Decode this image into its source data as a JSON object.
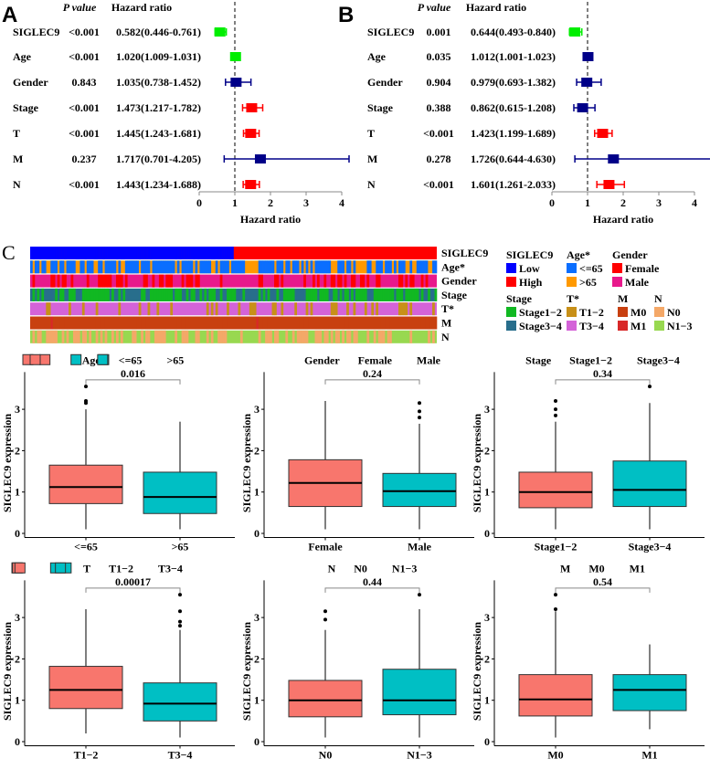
{
  "panels": {
    "A": "A",
    "B": "B",
    "C": "C"
  },
  "chart_data": [
    {
      "type": "forest",
      "panel": "A",
      "col_p": "P value",
      "col_hr": "Hazard ratio",
      "xlabel": "Hazard ratio",
      "xticks": [
        "0",
        "1",
        "2",
        "3",
        "4"
      ],
      "xlim": [
        0,
        4
      ],
      "rows": [
        {
          "name": "SIGLEC9",
          "p": "<0.001",
          "hr_text": "0.582(0.446-0.761)",
          "hr": 0.582,
          "lo": 0.446,
          "hi": 0.761,
          "color": "#00ee00"
        },
        {
          "name": "Age",
          "p": "<0.001",
          "hr_text": "1.020(1.009-1.031)",
          "hr": 1.02,
          "lo": 1.009,
          "hi": 1.031,
          "color": "#00ee00"
        },
        {
          "name": "Gender",
          "p": "0.843",
          "hr_text": "1.035(0.738-1.452)",
          "hr": 1.035,
          "lo": 0.738,
          "hi": 1.452,
          "color": "#000088"
        },
        {
          "name": "Stage",
          "p": "<0.001",
          "hr_text": "1.473(1.217-1.782)",
          "hr": 1.473,
          "lo": 1.217,
          "hi": 1.782,
          "color": "#ff0000"
        },
        {
          "name": "T",
          "p": "<0.001",
          "hr_text": "1.445(1.243-1.681)",
          "hr": 1.445,
          "lo": 1.243,
          "hi": 1.681,
          "color": "#ff0000"
        },
        {
          "name": "M",
          "p": "0.237",
          "hr_text": "1.717(0.701-4.205)",
          "hr": 1.717,
          "lo": 0.701,
          "hi": 4.205,
          "color": "#000088"
        },
        {
          "name": "N",
          "p": "<0.001",
          "hr_text": "1.443(1.234-1.688)",
          "hr": 1.443,
          "lo": 1.234,
          "hi": 1.688,
          "color": "#ff0000"
        }
      ]
    },
    {
      "type": "forest",
      "panel": "B",
      "col_p": "P value",
      "col_hr": "Hazard ratio",
      "xlabel": "Hazard ratio",
      "xticks": [
        "0",
        "1",
        "2",
        "3",
        "4"
      ],
      "xlim": [
        0,
        4
      ],
      "rows": [
        {
          "name": "SIGLEC9",
          "p": "0.001",
          "hr_text": "0.644(0.493-0.840)",
          "hr": 0.644,
          "lo": 0.493,
          "hi": 0.84,
          "color": "#00ee00"
        },
        {
          "name": "Age",
          "p": "0.035",
          "hr_text": "1.012(1.001-1.023)",
          "hr": 1.012,
          "lo": 1.001,
          "hi": 1.023,
          "color": "#000088"
        },
        {
          "name": "Gender",
          "p": "0.904",
          "hr_text": "0.979(0.693-1.382)",
          "hr": 0.979,
          "lo": 0.693,
          "hi": 1.382,
          "color": "#000088"
        },
        {
          "name": "Stage",
          "p": "0.388",
          "hr_text": "0.862(0.615-1.208)",
          "hr": 0.862,
          "lo": 0.615,
          "hi": 1.208,
          "color": "#000088"
        },
        {
          "name": "T",
          "p": "<0.001",
          "hr_text": "1.423(1.199-1.689)",
          "hr": 1.423,
          "lo": 1.199,
          "hi": 1.689,
          "color": "#ff0000"
        },
        {
          "name": "M",
          "p": "0.278",
          "hr_text": "1.726(0.644-4.630)",
          "hr": 1.726,
          "lo": 0.644,
          "hi": 4.63,
          "color": "#000088"
        },
        {
          "name": "N",
          "p": "<0.001",
          "hr_text": "1.601(1.261-2.033)",
          "hr": 1.601,
          "lo": 1.261,
          "hi": 2.033,
          "color": "#ff0000"
        }
      ]
    },
    {
      "type": "heatmap",
      "panel": "C",
      "rows": [
        {
          "name": "SIGLEC9",
          "levels": [
            "Low",
            "High"
          ],
          "colors": [
            "#0000ff",
            "#ff0000"
          ],
          "frac": 0.5,
          "sorted": true
        },
        {
          "name": "Age*",
          "levels": [
            "<=65",
            ">65"
          ],
          "colors": [
            "#0a6eff",
            "#ff9900"
          ],
          "frac": 0.7
        },
        {
          "name": "Gender",
          "levels": [
            "Female",
            "Male"
          ],
          "colors": [
            "#ff0000",
            "#e8198c"
          ],
          "frac": 0.35
        },
        {
          "name": "Stage",
          "levels": [
            "Stage1−2",
            "Stage3−4"
          ],
          "colors": [
            "#11b822",
            "#286e8c"
          ],
          "frac": 0.6
        },
        {
          "name": "T*",
          "levels": [
            "T1−2",
            "T3−4"
          ],
          "colors": [
            "#c89018",
            "#d463d8"
          ],
          "frac": 0.2
        },
        {
          "name": "M",
          "levels": [
            "M0",
            "M1"
          ],
          "colors": [
            "#c84010",
            "#d82828"
          ],
          "frac": 0.97
        },
        {
          "name": "N",
          "levels": [
            "N0",
            "N1−3"
          ],
          "colors": [
            "#f4a868",
            "#98d850"
          ],
          "frac": 0.5
        }
      ],
      "legend_titles": [
        "SIGLEC9",
        "Age*",
        "Gender",
        "Stage",
        "T*",
        "M",
        "N"
      ]
    },
    {
      "type": "box",
      "var": "Age",
      "groups": [
        "<=65",
        ">65"
      ],
      "p": "0.016",
      "ylabel": "SIGLEC9 expression",
      "yticks": [
        0,
        1,
        2,
        3
      ],
      "stats": [
        {
          "min": 0.1,
          "q1": 0.72,
          "med": 1.12,
          "q3": 1.65,
          "max": 3.0,
          "out": [
            3.15,
            3.2,
            3.55
          ]
        },
        {
          "min": 0.1,
          "q1": 0.48,
          "med": 0.88,
          "q3": 1.48,
          "max": 2.7,
          "out": []
        }
      ]
    },
    {
      "type": "box",
      "var": "Gender",
      "groups": [
        "Female",
        "Male"
      ],
      "p": "0.24",
      "ylabel": "SIGLEC9 expression",
      "yticks": [
        0,
        1,
        2,
        3
      ],
      "stats": [
        {
          "min": 0.1,
          "q1": 0.65,
          "med": 1.22,
          "q3": 1.78,
          "max": 3.2,
          "out": []
        },
        {
          "min": 0.1,
          "q1": 0.65,
          "med": 1.02,
          "q3": 1.45,
          "max": 2.65,
          "out": [
            2.8,
            2.95,
            3.15
          ]
        }
      ]
    },
    {
      "type": "box",
      "var": "Stage",
      "groups": [
        "Stage1−2",
        "Stage3−4"
      ],
      "p": "0.34",
      "ylabel": "SIGLEC9 expression",
      "yticks": [
        0,
        1,
        2,
        3
      ],
      "stats": [
        {
          "min": 0.1,
          "q1": 0.62,
          "med": 1.0,
          "q3": 1.48,
          "max": 2.7,
          "out": [
            2.85,
            3.0,
            3.2
          ]
        },
        {
          "min": 0.1,
          "q1": 0.65,
          "med": 1.05,
          "q3": 1.75,
          "max": 3.15,
          "out": [
            3.55
          ]
        }
      ]
    },
    {
      "type": "box",
      "var": "T",
      "groups": [
        "T1−2",
        "T3−4"
      ],
      "p": "0.00017",
      "ylabel": "SIGLEC9 expression",
      "yticks": [
        0,
        1,
        2,
        3
      ],
      "stats": [
        {
          "min": 0.2,
          "q1": 0.8,
          "med": 1.25,
          "q3": 1.82,
          "max": 3.2,
          "out": []
        },
        {
          "min": 0.1,
          "q1": 0.5,
          "med": 0.92,
          "q3": 1.42,
          "max": 2.7,
          "out": [
            2.8,
            2.9,
            3.15,
            3.55
          ]
        }
      ]
    },
    {
      "type": "box",
      "var": "N",
      "groups": [
        "N0",
        "N1−3"
      ],
      "p": "0.44",
      "ylabel": "SIGLEC9 expression",
      "yticks": [
        0,
        1,
        2,
        3
      ],
      "stats": [
        {
          "min": 0.1,
          "q1": 0.6,
          "med": 1.0,
          "q3": 1.48,
          "max": 2.7,
          "out": [
            2.95,
            3.15
          ]
        },
        {
          "min": 0.1,
          "q1": 0.65,
          "med": 1.0,
          "q3": 1.75,
          "max": 3.2,
          "out": [
            3.55
          ]
        }
      ]
    },
    {
      "type": "box",
      "var": "M",
      "groups": [
        "M0",
        "M1"
      ],
      "p": "0.54",
      "ylabel": "SIGLEC9 expression",
      "yticks": [
        0,
        1,
        2,
        3
      ],
      "stats": [
        {
          "min": 0.1,
          "q1": 0.62,
          "med": 1.02,
          "q3": 1.62,
          "max": 3.15,
          "out": [
            3.2,
            3.55
          ]
        },
        {
          "min": 0.3,
          "q1": 0.75,
          "med": 1.25,
          "q3": 1.62,
          "max": 2.35,
          "out": []
        }
      ]
    }
  ],
  "box_colors": [
    "#f8766d",
    "#00bfc4"
  ]
}
